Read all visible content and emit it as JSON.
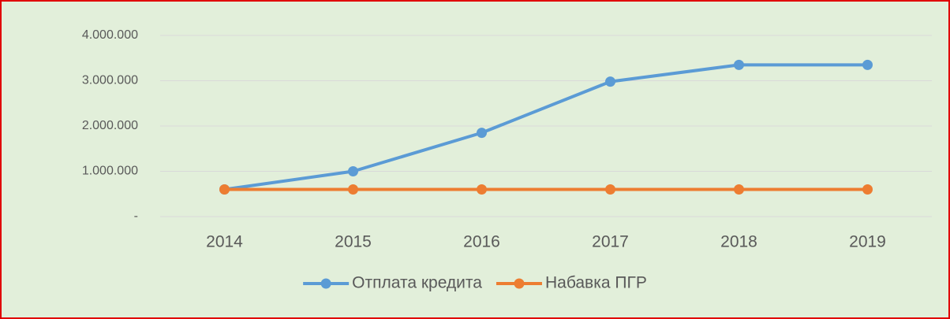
{
  "chart_data": {
    "type": "line",
    "categories": [
      "2014",
      "2015",
      "2016",
      "2017",
      "2018",
      "2019"
    ],
    "series": [
      {
        "name": "Отплата кредита",
        "color": "#5b9bd5",
        "values": [
          600000,
          1000000,
          1850000,
          2980000,
          3350000,
          3350000
        ]
      },
      {
        "name": "Набавка ПГР",
        "color": "#ed7d31",
        "values": [
          600000,
          600000,
          600000,
          600000,
          600000,
          600000
        ]
      }
    ],
    "ylim": [
      0,
      4000000
    ],
    "yticks": [
      {
        "value": 0,
        "label": "-"
      },
      {
        "value": 1000000,
        "label": "1.000.000"
      },
      {
        "value": 2000000,
        "label": "2.000.000"
      },
      {
        "value": 3000000,
        "label": "3.000.000"
      },
      {
        "value": 4000000,
        "label": "4.000.000"
      }
    ],
    "grid": true,
    "legend": "bottom"
  }
}
